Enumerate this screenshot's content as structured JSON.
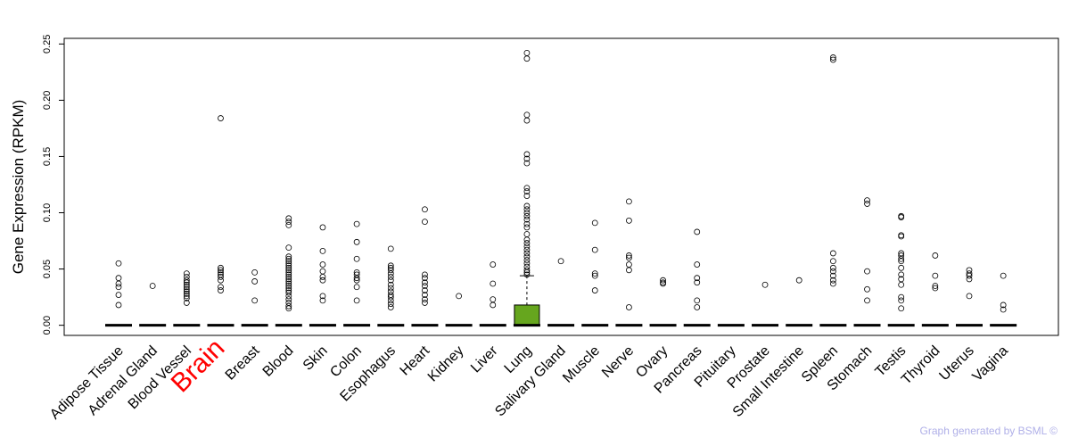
{
  "chart_data": {
    "type": "box",
    "ylabel": "Gene Expression (RPKM)",
    "ylim": [
      -0.009,
      0.255
    ],
    "yticks": [
      "0.00",
      "0.05",
      "0.10",
      "0.15",
      "0.20",
      "0.25"
    ],
    "highlight_category": "Brain",
    "colors": {
      "highlight_label": "#ff0000",
      "box_fill": "#66a61e",
      "median": "#000000",
      "footer": "#b0b0e8"
    },
    "categories": [
      {
        "name": "Adipose Tissue",
        "median": 0,
        "outliers": [
          0.055,
          0.042,
          0.037,
          0.034,
          0.027,
          0.018
        ]
      },
      {
        "name": "Adrenal Gland",
        "median": 0,
        "outliers": [
          0.035
        ]
      },
      {
        "name": "Blood Vessel",
        "median": 0,
        "outliers": [
          0.046,
          0.043,
          0.04,
          0.038,
          0.036,
          0.034,
          0.032,
          0.03,
          0.028,
          0.026,
          0.024,
          0.02
        ]
      },
      {
        "name": "Brain",
        "median": 0,
        "outliers": [
          0.184,
          0.051,
          0.049,
          0.047,
          0.045,
          0.043,
          0.04,
          0.034,
          0.031
        ]
      },
      {
        "name": "Breast",
        "median": 0,
        "outliers": [
          0.047,
          0.039,
          0.022
        ]
      },
      {
        "name": "Blood",
        "median": 0,
        "outliers": [
          0.095,
          0.092,
          0.089,
          0.069,
          0.061,
          0.059,
          0.057,
          0.055,
          0.053,
          0.051,
          0.049,
          0.047,
          0.045,
          0.043,
          0.041,
          0.039,
          0.037,
          0.035,
          0.033,
          0.031,
          0.029,
          0.026,
          0.023,
          0.02,
          0.017,
          0.015
        ]
      },
      {
        "name": "Skin",
        "median": 0,
        "outliers": [
          0.087,
          0.066,
          0.054,
          0.048,
          0.043,
          0.04,
          0.026,
          0.022
        ]
      },
      {
        "name": "Colon",
        "median": 0,
        "outliers": [
          0.09,
          0.074,
          0.059,
          0.047,
          0.045,
          0.042,
          0.04,
          0.034,
          0.022
        ]
      },
      {
        "name": "Esophagus",
        "median": 0,
        "outliers": [
          0.068,
          0.053,
          0.051,
          0.049,
          0.046,
          0.043,
          0.04,
          0.036,
          0.033,
          0.03,
          0.027,
          0.025,
          0.022,
          0.019,
          0.016
        ]
      },
      {
        "name": "Heart",
        "median": 0,
        "outliers": [
          0.103,
          0.092,
          0.045,
          0.042,
          0.038,
          0.035,
          0.031,
          0.027,
          0.023,
          0.02
        ]
      },
      {
        "name": "Kidney",
        "median": 0,
        "outliers": [
          0.026
        ]
      },
      {
        "name": "Liver",
        "median": 0,
        "outliers": [
          0.054,
          0.037,
          0.023,
          0.018
        ]
      },
      {
        "name": "Lung",
        "median": 0,
        "q1": 0,
        "q3": 0.018,
        "whisker_high": 0.044,
        "outliers": [
          0.242,
          0.237,
          0.187,
          0.182,
          0.152,
          0.148,
          0.144,
          0.122,
          0.119,
          0.115,
          0.106,
          0.103,
          0.1,
          0.097,
          0.094,
          0.09,
          0.087,
          0.081,
          0.076,
          0.073,
          0.07,
          0.067,
          0.064,
          0.061,
          0.058,
          0.055,
          0.052,
          0.049,
          0.047,
          0.045
        ]
      },
      {
        "name": "Salivary Gland",
        "median": 0,
        "outliers": [
          0.057
        ]
      },
      {
        "name": "Muscle",
        "median": 0,
        "outliers": [
          0.091,
          0.067,
          0.046,
          0.044,
          0.031
        ]
      },
      {
        "name": "Nerve",
        "median": 0,
        "outliers": [
          0.11,
          0.093,
          0.062,
          0.06,
          0.054,
          0.049,
          0.016
        ]
      },
      {
        "name": "Ovary",
        "median": 0,
        "outliers": [
          0.04,
          0.038,
          0.037
        ]
      },
      {
        "name": "Pancreas",
        "median": 0,
        "outliers": [
          0.083,
          0.054,
          0.042,
          0.038,
          0.022,
          0.016
        ]
      },
      {
        "name": "Pituitary",
        "median": 0,
        "outliers": []
      },
      {
        "name": "Prostate",
        "median": 0,
        "outliers": [
          0.036
        ]
      },
      {
        "name": "Small Intestine",
        "median": 0,
        "outliers": [
          0.04
        ]
      },
      {
        "name": "Spleen",
        "median": 0,
        "outliers": [
          0.238,
          0.236,
          0.064,
          0.057,
          0.051,
          0.048,
          0.044,
          0.04,
          0.037
        ]
      },
      {
        "name": "Stomach",
        "median": 0,
        "outliers": [
          0.111,
          0.108,
          0.048,
          0.032,
          0.022
        ]
      },
      {
        "name": "Testis",
        "median": 0,
        "outliers": [
          0.097,
          0.096,
          0.08,
          0.079,
          0.064,
          0.062,
          0.059,
          0.057,
          0.051,
          0.045,
          0.041,
          0.036,
          0.025,
          0.022,
          0.015
        ]
      },
      {
        "name": "Thyroid",
        "median": 0,
        "outliers": [
          0.062,
          0.044,
          0.035,
          0.033
        ]
      },
      {
        "name": "Uterus",
        "median": 0,
        "outliers": [
          0.049,
          0.046,
          0.044,
          0.041,
          0.026
        ]
      },
      {
        "name": "Vagina",
        "median": 0,
        "outliers": [
          0.044,
          0.018,
          0.014
        ]
      }
    ]
  },
  "footer": {
    "text": "Graph generated by BSML ©"
  }
}
